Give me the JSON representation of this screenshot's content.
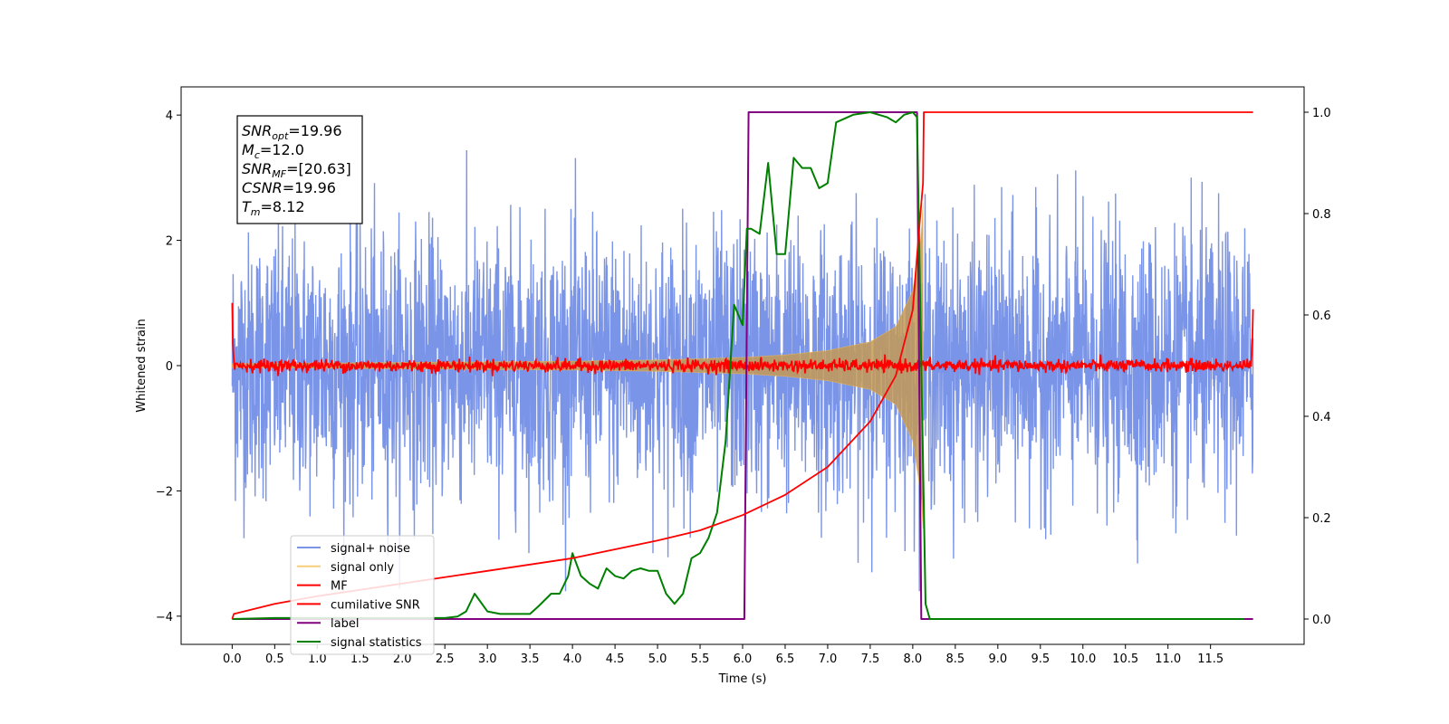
{
  "chart_data": {
    "type": "line",
    "xlabel": "Time (s)",
    "ylabel_left": "Whitened strain",
    "ylabel_right": "",
    "xlim": [
      -0.6,
      12.6
    ],
    "ylim_left": [
      -4.45,
      4.45
    ],
    "ylim_right": [
      -0.05,
      1.05
    ],
    "x_ticks": [
      "0.0",
      "0.5",
      "1.0",
      "1.5",
      "2.0",
      "2.5",
      "3.0",
      "3.5",
      "4.0",
      "4.5",
      "5.0",
      "5.5",
      "6.0",
      "6.5",
      "7.0",
      "7.5",
      "8.0",
      "8.5",
      "9.0",
      "9.5",
      "10.0",
      "10.5",
      "11.0",
      "11.5"
    ],
    "x_tick_values": [
      0.0,
      0.5,
      1.0,
      1.5,
      2.0,
      2.5,
      3.0,
      3.5,
      4.0,
      4.5,
      5.0,
      5.5,
      6.0,
      6.5,
      7.0,
      7.5,
      8.0,
      8.5,
      9.0,
      9.5,
      10.0,
      10.5,
      11.0,
      11.5
    ],
    "y_ticks_left": [
      "4",
      "2",
      "0",
      "−2",
      "−4"
    ],
    "y_tick_values_left": [
      4,
      2,
      0,
      -2,
      -4
    ],
    "y_ticks_right": [
      "1.0",
      "0.8",
      "0.6",
      "0.4",
      "0.2",
      "0.0"
    ],
    "y_tick_values_right": [
      1.0,
      0.8,
      0.6,
      0.4,
      0.2,
      0.0
    ],
    "grid": false,
    "legend_placement": "lower-left",
    "legend": [
      {
        "label": "signal+ noise",
        "color": "#6b88e6",
        "alpha": 0.9
      },
      {
        "label": "signal only",
        "color": "#f5b942",
        "alpha": 0.7
      },
      {
        "label": "MF",
        "color": "#ff0000",
        "alpha": 1
      },
      {
        "label": "cumilative SNR",
        "color": "#ff0000",
        "alpha": 1
      },
      {
        "label": "label",
        "color": "#800080",
        "alpha": 1
      },
      {
        "label": "signal statistics",
        "color": "#008000",
        "alpha": 1
      }
    ],
    "info_box": [
      {
        "base": "SNR",
        "sub": "opt",
        "value": "=19.96"
      },
      {
        "base": "M",
        "sub": "c",
        "value": "=12.0"
      },
      {
        "base": "SNR",
        "sub": "MF",
        "value": "=[20.63]"
      },
      {
        "base": "CSNR",
        "sub": "",
        "value": "=19.96"
      },
      {
        "base": "T",
        "sub": "m",
        "value": "=8.12"
      }
    ],
    "series": [
      {
        "name": "signal+ noise",
        "axis": "left",
        "x_range": [
          0.0,
          12.0
        ],
        "noise_std": 1.05,
        "clip": [
          -3.6,
          4.0
        ],
        "note_color": "#6b88e6"
      },
      {
        "name": "signal only",
        "axis": "left",
        "envelope": {
          "x": [
            0.0,
            2.0,
            4.0,
            5.0,
            6.0,
            6.5,
            7.0,
            7.5,
            7.8,
            8.0,
            8.1,
            8.12
          ],
          "amp": [
            0.03,
            0.05,
            0.07,
            0.09,
            0.13,
            0.17,
            0.24,
            0.38,
            0.62,
            1.2,
            2.1,
            2.6
          ]
        }
      },
      {
        "name": "MF",
        "axis": "left",
        "x_range": [
          0.0,
          12.0
        ],
        "baseline": 0.0,
        "noise_std": 0.05,
        "edge_values": {
          "start": 1.0,
          "end": 0.9
        }
      },
      {
        "name": "cumilative SNR",
        "axis": "right",
        "x": [
          0.0,
          0.02,
          0.5,
          1.0,
          2.0,
          3.0,
          4.0,
          5.0,
          5.5,
          6.0,
          6.5,
          7.0,
          7.5,
          7.8,
          8.0,
          8.08,
          8.12,
          8.13,
          12.0
        ],
        "y": [
          0.0,
          0.01,
          0.03,
          0.045,
          0.07,
          0.095,
          0.12,
          0.155,
          0.175,
          0.205,
          0.245,
          0.3,
          0.39,
          0.48,
          0.61,
          0.78,
          0.86,
          1.0,
          1.0
        ]
      },
      {
        "name": "label",
        "axis": "right",
        "x": [
          0.0,
          6.02,
          6.07,
          8.05,
          8.1,
          12.0
        ],
        "y": [
          0.0,
          0.0,
          1.0,
          1.0,
          0.0,
          0.0
        ]
      },
      {
        "name": "signal statistics",
        "axis": "right",
        "x": [
          0.0,
          0.5,
          1.0,
          1.5,
          2.0,
          2.3,
          2.5,
          2.65,
          2.75,
          2.85,
          3.0,
          3.15,
          3.3,
          3.5,
          3.6,
          3.75,
          3.85,
          3.95,
          4.0,
          4.1,
          4.2,
          4.3,
          4.4,
          4.5,
          4.6,
          4.7,
          4.8,
          4.9,
          5.0,
          5.1,
          5.2,
          5.3,
          5.4,
          5.5,
          5.6,
          5.7,
          5.8,
          5.9,
          6.0,
          6.05,
          6.1,
          6.2,
          6.3,
          6.4,
          6.5,
          6.6,
          6.7,
          6.8,
          6.9,
          7.0,
          7.1,
          7.3,
          7.5,
          7.7,
          7.8,
          7.9,
          8.0,
          8.05,
          8.1,
          8.15,
          8.2,
          8.3,
          9.0,
          10.0,
          11.0,
          11.9
        ],
        "y": [
          0.0,
          0.002,
          0.002,
          0.002,
          0.002,
          0.002,
          0.002,
          0.005,
          0.015,
          0.05,
          0.015,
          0.01,
          0.01,
          0.01,
          0.025,
          0.05,
          0.05,
          0.085,
          0.13,
          0.085,
          0.07,
          0.06,
          0.1,
          0.085,
          0.08,
          0.095,
          0.1,
          0.095,
          0.095,
          0.05,
          0.03,
          0.05,
          0.12,
          0.13,
          0.16,
          0.21,
          0.35,
          0.62,
          0.58,
          0.77,
          0.77,
          0.76,
          0.9,
          0.72,
          0.72,
          0.91,
          0.89,
          0.89,
          0.85,
          0.86,
          0.98,
          0.995,
          1.0,
          0.99,
          0.98,
          0.995,
          1.0,
          0.99,
          0.5,
          0.03,
          0.0,
          0.0,
          0.0,
          0.0,
          0.0,
          0.0
        ]
      }
    ]
  }
}
